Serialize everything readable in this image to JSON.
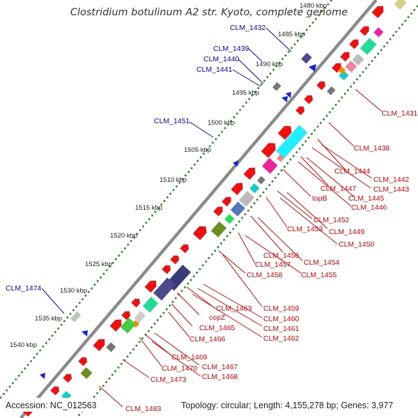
{
  "title": "Clostridium botulinum A2 str. Kyoto, complete genome",
  "footer": {
    "accession": "Accession: NC_012563",
    "summary": "Topology: circular; Length: 4,155,278 bp; Genes: 3,977"
  },
  "colors": {
    "forward_gene": "#ee1111",
    "backbone": "#888888",
    "tick_dots": "#228822",
    "label_blue": "#0000d0",
    "label_red": "#e00000",
    "strand_marker": "#1122dd"
  },
  "ticks": [
    "1480 kbp",
    "1485 kbp",
    "1490 kbp",
    "1495 kbp",
    "1500 kbp",
    "1505 kbp",
    "1510 kbp",
    "1515 kbp",
    "1520 kbp",
    "1525 kbp",
    "1530 kbp",
    "1535 kbp",
    "1540 kbp"
  ],
  "labels_blue": [
    "CLM_1432",
    "CLM_1439",
    "CLM_1440",
    "CLM_1441",
    "CLM_1451",
    "CLM_1474"
  ],
  "labels_red": [
    "CLM_1431",
    "CLM_1438",
    "CLM_1444",
    "CLM_1442",
    "CLM_1443",
    "CLM_1447",
    "CLM_1445",
    "CLM_1446",
    "topB",
    "CLM_1452",
    "CLM_1453",
    "CLM_1449",
    "CLM_1450",
    "CLM_1456",
    "CLM_1454",
    "CLM_1457",
    "CLM_1455",
    "CLM_1458",
    "CLM_1459",
    "CLM_1463",
    "copZ",
    "CLM_1460",
    "CLM_1461",
    "CLM_1465",
    "CLM_1462",
    "CLM_1466",
    "CLM_1469",
    "CLM_1467",
    "CLM_1470",
    "CLM_1468",
    "CLM_1473",
    "CLM_1483"
  ]
}
